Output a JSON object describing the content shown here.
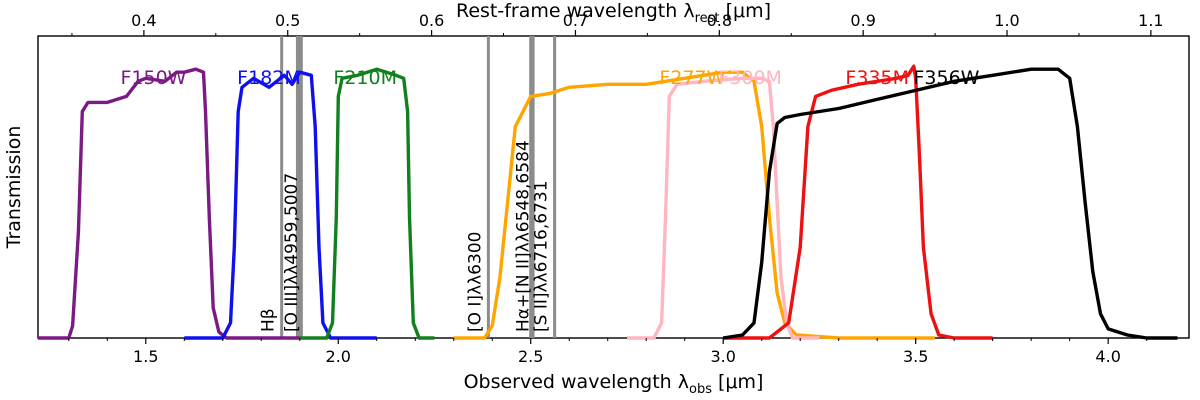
{
  "chart_data": {
    "type": "line",
    "xlabel": "Observed wavelength λ",
    "xlabel_sub": "obs",
    "xlabel_unit": " [μm]",
    "x2label": "Rest-frame wavelength λ",
    "x2label_sub": "rest",
    "x2label_unit": " [μm]",
    "ylabel": "Transmission",
    "xlim": [
      1.22,
      4.21
    ],
    "x2lim": [
      0.3264,
      1.1265
    ],
    "ylim": [
      0,
      1.0
    ],
    "x_ticks": [
      "1.5",
      "2.0",
      "2.5",
      "3.0",
      "3.5",
      "4.0"
    ],
    "x2_ticks": [
      "0.4",
      "0.5",
      "0.6",
      "0.7",
      "0.8",
      "0.9",
      "1.0",
      "1.1"
    ],
    "legend": "labels placed above each curve",
    "series": [
      {
        "name": "F150W",
        "color": "#7b1a85",
        "x": [
          1.22,
          1.3,
          1.31,
          1.325,
          1.335,
          1.35,
          1.4,
          1.45,
          1.48,
          1.5,
          1.55,
          1.58,
          1.6,
          1.63,
          1.65,
          1.655,
          1.665,
          1.675,
          1.69,
          1.71,
          1.75,
          1.8,
          1.9
        ],
        "y": [
          0,
          0,
          0.04,
          0.35,
          0.75,
          0.78,
          0.78,
          0.8,
          0.85,
          0.86,
          0.85,
          0.88,
          0.88,
          0.89,
          0.88,
          0.75,
          0.4,
          0.1,
          0.02,
          0,
          0,
          0,
          0
        ]
      },
      {
        "name": "F182M",
        "color": "#1010ee",
        "x": [
          1.6,
          1.7,
          1.72,
          1.73,
          1.74,
          1.75,
          1.78,
          1.82,
          1.86,
          1.88,
          1.9,
          1.93,
          1.94,
          1.95,
          1.96,
          1.98,
          2.1
        ],
        "y": [
          0,
          0,
          0.05,
          0.3,
          0.75,
          0.83,
          0.86,
          0.83,
          0.87,
          0.84,
          0.88,
          0.87,
          0.7,
          0.3,
          0.05,
          0,
          0
        ]
      },
      {
        "name": "F210M",
        "color": "#12801f",
        "x": [
          1.9,
          1.97,
          1.985,
          1.995,
          2.0,
          2.01,
          2.05,
          2.1,
          2.15,
          2.17,
          2.18,
          2.185,
          2.195,
          2.21,
          2.25
        ],
        "y": [
          0,
          0,
          0.05,
          0.4,
          0.8,
          0.86,
          0.87,
          0.89,
          0.87,
          0.86,
          0.75,
          0.4,
          0.05,
          0,
          0
        ]
      },
      {
        "name": "F277W",
        "color": "#ffa500",
        "x": [
          2.3,
          2.38,
          2.4,
          2.42,
          2.44,
          2.46,
          2.5,
          2.55,
          2.6,
          2.7,
          2.8,
          2.9,
          3.0,
          3.05,
          3.08,
          3.1,
          3.12,
          3.14,
          3.16,
          3.19,
          3.3,
          3.5,
          3.55
        ],
        "y": [
          0,
          0,
          0.04,
          0.2,
          0.45,
          0.7,
          0.8,
          0.81,
          0.83,
          0.84,
          0.84,
          0.86,
          0.88,
          0.88,
          0.85,
          0.7,
          0.4,
          0.15,
          0.05,
          0.01,
          0,
          0,
          0
        ]
      },
      {
        "name": "F300M",
        "color": "#ffb6c1",
        "x": [
          2.75,
          2.82,
          2.84,
          2.85,
          2.86,
          2.88,
          2.95,
          3.05,
          3.1,
          3.12,
          3.13,
          3.14,
          3.15,
          3.165,
          3.18,
          3.25
        ],
        "y": [
          0,
          0,
          0.05,
          0.4,
          0.8,
          0.84,
          0.85,
          0.86,
          0.86,
          0.85,
          0.7,
          0.45,
          0.2,
          0.05,
          0,
          0
        ]
      },
      {
        "name": "F335M",
        "color": "#ee1111",
        "x": [
          3.0,
          3.12,
          3.17,
          3.2,
          3.22,
          3.24,
          3.28,
          3.35,
          3.4,
          3.45,
          3.48,
          3.495,
          3.5,
          3.51,
          3.52,
          3.54,
          3.56,
          3.6,
          3.7
        ],
        "y": [
          0,
          0,
          0.05,
          0.3,
          0.7,
          0.8,
          0.82,
          0.84,
          0.85,
          0.86,
          0.87,
          0.9,
          0.86,
          0.6,
          0.3,
          0.08,
          0.01,
          0,
          0
        ]
      },
      {
        "name": "F356W",
        "color": "#000000",
        "x": [
          3.0,
          3.05,
          3.08,
          3.1,
          3.12,
          3.14,
          3.16,
          3.2,
          3.3,
          3.4,
          3.5,
          3.6,
          3.7,
          3.8,
          3.87,
          3.9,
          3.92,
          3.94,
          3.96,
          3.98,
          4.0,
          4.05,
          4.1,
          4.18
        ],
        "y": [
          0,
          0.01,
          0.05,
          0.25,
          0.55,
          0.71,
          0.73,
          0.74,
          0.76,
          0.79,
          0.82,
          0.85,
          0.87,
          0.89,
          0.89,
          0.86,
          0.7,
          0.45,
          0.22,
          0.08,
          0.03,
          0.01,
          0,
          0
        ]
      }
    ],
    "emission_lines": [
      {
        "label": "Hβ",
        "x": 1.853,
        "x_end": 1.853
      },
      {
        "label": "[O III]λλ4959,5007",
        "x": 1.89,
        "x_end": 1.908
      },
      {
        "label": "[O I]λλ6300",
        "x": 2.39,
        "x_end": 2.39
      },
      {
        "label": "Hα+[N II]λλ6548,6584",
        "x": 2.496,
        "x_end": 2.51
      },
      {
        "label": "[S II]λλ6716,6731",
        "x": 2.562,
        "x_end": 2.562
      }
    ]
  }
}
